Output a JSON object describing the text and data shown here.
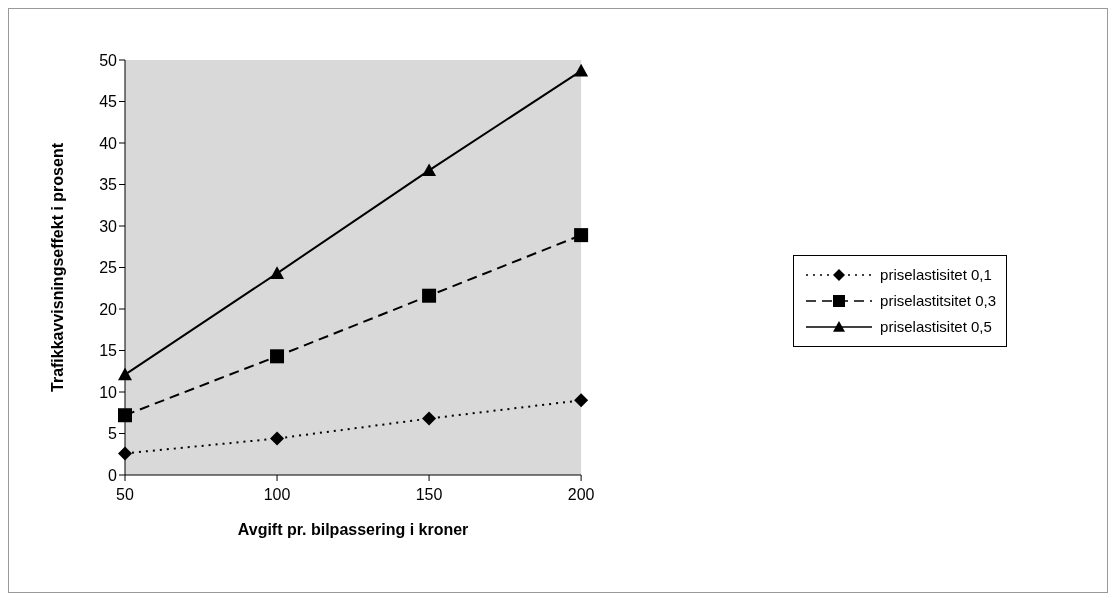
{
  "chart_data": {
    "type": "line",
    "xlabel": "Avgift pr. bilpassering i kroner",
    "ylabel": "Trafikkavvisningseffekt i prosent",
    "x": [
      50,
      100,
      150,
      200
    ],
    "series": [
      {
        "name": "priselastisitet 0,1",
        "color": "#000000",
        "marker": "diamond",
        "line_style": "dotted",
        "values": [
          2.6,
          4.4,
          6.8,
          9.0
        ]
      },
      {
        "name": "priselastitsitet 0,3",
        "color": "#000000",
        "marker": "square",
        "line_style": "dashed",
        "values": [
          7.2,
          14.3,
          21.6,
          28.9
        ]
      },
      {
        "name": "priselastisitet 0,5",
        "color": "#000000",
        "marker": "triangle",
        "line_style": "solid",
        "values": [
          12.1,
          24.3,
          36.7,
          48.7
        ]
      }
    ],
    "xlim": [
      50,
      200
    ],
    "xticks": [
      50,
      100,
      150,
      200
    ],
    "ylim": [
      0,
      50
    ],
    "yticks": [
      0,
      5,
      10,
      15,
      20,
      25,
      30,
      35,
      40,
      45,
      50
    ],
    "grid": false,
    "legend": "right"
  }
}
